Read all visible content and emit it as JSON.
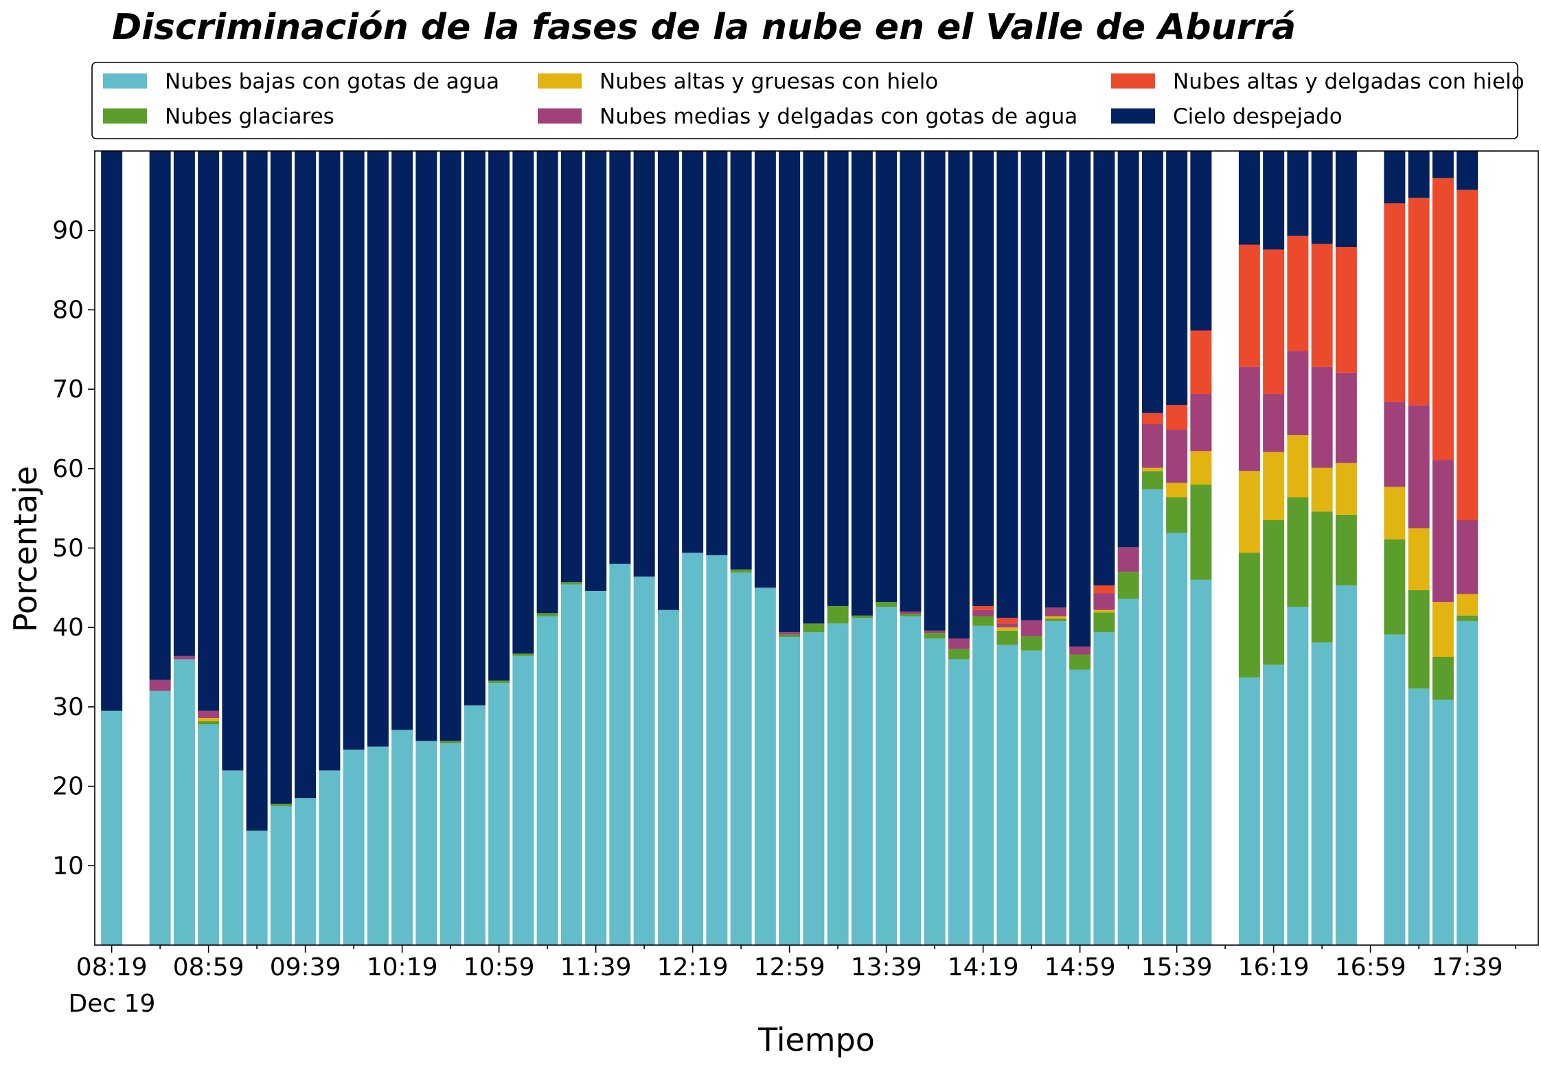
{
  "chart_data": {
    "type": "bar",
    "stacked": true,
    "title": "Discriminación de la fases de la nube en el Valle de Aburrá",
    "xlabel": "Tiempo",
    "ylabel": "Porcentaje",
    "ylim": [
      0,
      100
    ],
    "yticks": [
      10,
      20,
      30,
      40,
      50,
      60,
      70,
      80,
      90
    ],
    "grid": false,
    "legend_position": "top",
    "x_start": "08:19",
    "x_interval_minutes": 10,
    "x_date_label": "Dec 19",
    "x_tick_labels": [
      "08:19",
      "08:59",
      "09:39",
      "10:19",
      "10:59",
      "11:39",
      "12:19",
      "12:59",
      "13:39",
      "14:19",
      "14:59",
      "15:39",
      "16:19",
      "16:59",
      "17:39"
    ],
    "categories": [
      "08:19",
      "08:29",
      "08:39",
      "08:49",
      "08:59",
      "09:09",
      "09:19",
      "09:29",
      "09:39",
      "09:49",
      "09:59",
      "10:09",
      "10:19",
      "10:29",
      "10:39",
      "10:49",
      "10:59",
      "11:09",
      "11:19",
      "11:29",
      "11:39",
      "11:49",
      "11:59",
      "12:09",
      "12:19",
      "12:29",
      "12:39",
      "12:49",
      "12:59",
      "13:09",
      "13:19",
      "13:29",
      "13:39",
      "13:49",
      "13:59",
      "14:09",
      "14:19",
      "14:29",
      "14:39",
      "14:49",
      "14:59",
      "15:09",
      "15:19",
      "15:29",
      "15:39",
      "15:49",
      "15:59",
      "16:09",
      "16:19",
      "16:29",
      "16:39",
      "16:49",
      "16:59",
      "17:09",
      "17:19",
      "17:29",
      "17:39",
      "17:49",
      "17:59"
    ],
    "series": [
      {
        "name": "Nubes bajas con gotas de agua",
        "color": "#63BCC9",
        "values": [
          29.5,
          null,
          32,
          36,
          27.8,
          22,
          14.4,
          17.5,
          18.5,
          22,
          24.6,
          25,
          27.1,
          25.7,
          25.4,
          30.2,
          33,
          36.4,
          41.4,
          45.4,
          44.6,
          48,
          46.4,
          42.2,
          49.4,
          49.1,
          46.9,
          45,
          38.8,
          39.4,
          40.5,
          41.2,
          42.6,
          41.4,
          38.6,
          36,
          40.2,
          37.8,
          37.1,
          40.8,
          34.7,
          39.4,
          43.6,
          57.4,
          51.9,
          46,
          null,
          33.7,
          35.3,
          42.6,
          38.1,
          45.3,
          null,
          39.1,
          32.3,
          30.9,
          40.8,
          null,
          null
        ]
      },
      {
        "name": "Nubes glaciares",
        "color": "#5B9E2B",
        "values": [
          0,
          null,
          0,
          0,
          0.4,
          0,
          0,
          0.3,
          0,
          0,
          0,
          0,
          0,
          0,
          0.3,
          0,
          0.3,
          0.3,
          0.4,
          0.3,
          0,
          0,
          0,
          0,
          0,
          0,
          0.4,
          0,
          0.3,
          1.1,
          2.2,
          0.3,
          0.6,
          0.3,
          0.7,
          1.3,
          1.2,
          1.8,
          1.8,
          0.3,
          1.9,
          2.5,
          3.4,
          2.3,
          4.5,
          12,
          null,
          15.7,
          18.2,
          13.8,
          16.5,
          8.9,
          null,
          12,
          12.4,
          5.4,
          0.7,
          null,
          null
        ]
      },
      {
        "name": "Nubes altas y gruesas con hielo",
        "color": "#E2B412",
        "values": [
          0,
          null,
          0,
          0,
          0.4,
          0,
          0,
          0,
          0,
          0,
          0,
          0,
          0,
          0,
          0,
          0,
          0,
          0,
          0,
          0,
          0,
          0,
          0,
          0,
          0,
          0,
          0,
          0,
          0,
          0,
          0,
          0,
          0,
          0,
          0,
          0,
          0,
          0.4,
          0,
          0.3,
          0,
          0.3,
          0,
          0.4,
          1.8,
          4.2,
          null,
          10.3,
          8.6,
          7.8,
          5.5,
          6.5,
          null,
          6.6,
          7.8,
          6.9,
          2.7,
          null,
          null
        ]
      },
      {
        "name": "Nubes medias y delgadas con gotas de agua",
        "color": "#A0417A",
        "values": [
          0,
          null,
          1.4,
          0.4,
          0.9,
          0,
          0,
          0,
          0,
          0,
          0,
          0,
          0,
          0,
          0,
          0,
          0,
          0,
          0,
          0,
          0,
          0,
          0,
          0,
          0,
          0,
          0,
          0,
          0.3,
          0,
          0,
          0,
          0,
          0.3,
          0.3,
          1.3,
          0.8,
          0.5,
          2,
          1.1,
          1,
          2.1,
          3.1,
          5.5,
          6.7,
          7.2,
          null,
          13.1,
          7.3,
          10.6,
          12.7,
          11.4,
          null,
          10.7,
          15.5,
          17.9,
          9.3,
          null,
          null
        ]
      },
      {
        "name": "Nubes altas y delgadas con hielo",
        "color": "#EC4A2C",
        "values": [
          0,
          null,
          0,
          0,
          0,
          0,
          0,
          0,
          0,
          0,
          0,
          0,
          0,
          0,
          0,
          0,
          0,
          0,
          0,
          0,
          0,
          0,
          0,
          0,
          0,
          0,
          0,
          0,
          0,
          0,
          0,
          0,
          0,
          0,
          0,
          0,
          0.5,
          0.7,
          0,
          0,
          0,
          1,
          0,
          1.4,
          3.1,
          8,
          null,
          15.4,
          18.2,
          14.5,
          15.5,
          15.8,
          null,
          25,
          26.1,
          35.5,
          41.6,
          null,
          null
        ]
      },
      {
        "name": "Cielo despejado",
        "color": "#03205F",
        "values": [
          70.5,
          null,
          66.6,
          63.6,
          70.5,
          78,
          85.6,
          82.2,
          81.5,
          78,
          75.4,
          75,
          72.9,
          74.3,
          74.3,
          69.8,
          66.7,
          63.3,
          58.2,
          54.3,
          55.4,
          52,
          53.6,
          57.8,
          50.6,
          50.9,
          52.7,
          55,
          60.6,
          59.5,
          57.3,
          58.5,
          56.8,
          58,
          60.4,
          61.4,
          57.3,
          58.8,
          59.1,
          57.5,
          62.4,
          54.7,
          49.9,
          33,
          32,
          22.6,
          null,
          11.8,
          12.4,
          10.7,
          11.7,
          12.1,
          null,
          6.6,
          5.9,
          3.4,
          4.9,
          null,
          null
        ]
      }
    ]
  }
}
